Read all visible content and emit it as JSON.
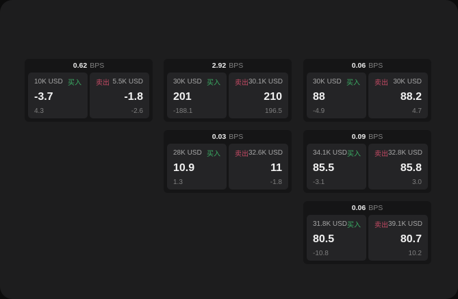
{
  "labels": {
    "bps_unit": "BPS",
    "buy": "买入",
    "sell": "卖出"
  },
  "colors": {
    "window_bg": "#1d1d1e",
    "card_bg": "#151516",
    "panel_bg": "#242426",
    "buy_green": "#3aab63",
    "sell_red": "#c34a64"
  },
  "cards": [
    {
      "bps": "0.62",
      "buy": {
        "amount": "10K USD",
        "price": "-3.7",
        "delta": "4.3"
      },
      "sell": {
        "amount": "5.5K USD",
        "price": "-1.8",
        "delta": "-2.6"
      }
    },
    {
      "bps": "2.92",
      "buy": {
        "amount": "30K USD",
        "price": "201",
        "delta": "-188.1"
      },
      "sell": {
        "amount": "30.1K USD",
        "price": "210",
        "delta": "196.5"
      }
    },
    {
      "bps": "0.06",
      "buy": {
        "amount": "30K USD",
        "price": "88",
        "delta": "-4.9"
      },
      "sell": {
        "amount": "30K USD",
        "price": "88.2",
        "delta": "4.7"
      }
    },
    {
      "bps": "0.03",
      "buy": {
        "amount": "28K USD",
        "price": "10.9",
        "delta": "1.3"
      },
      "sell": {
        "amount": "32.6K USD",
        "price": "11",
        "delta": "-1.8"
      }
    },
    {
      "bps": "0.09",
      "buy": {
        "amount": "34.1K USD",
        "price": "85.5",
        "delta": "-3.1"
      },
      "sell": {
        "amount": "32.8K USD",
        "price": "85.8",
        "delta": "3.0"
      }
    },
    {
      "bps": "0.06",
      "buy": {
        "amount": "31.8K USD",
        "price": "80.5",
        "delta": "-10.8"
      },
      "sell": {
        "amount": "39.1K USD",
        "price": "80.7",
        "delta": "10.2"
      }
    }
  ]
}
